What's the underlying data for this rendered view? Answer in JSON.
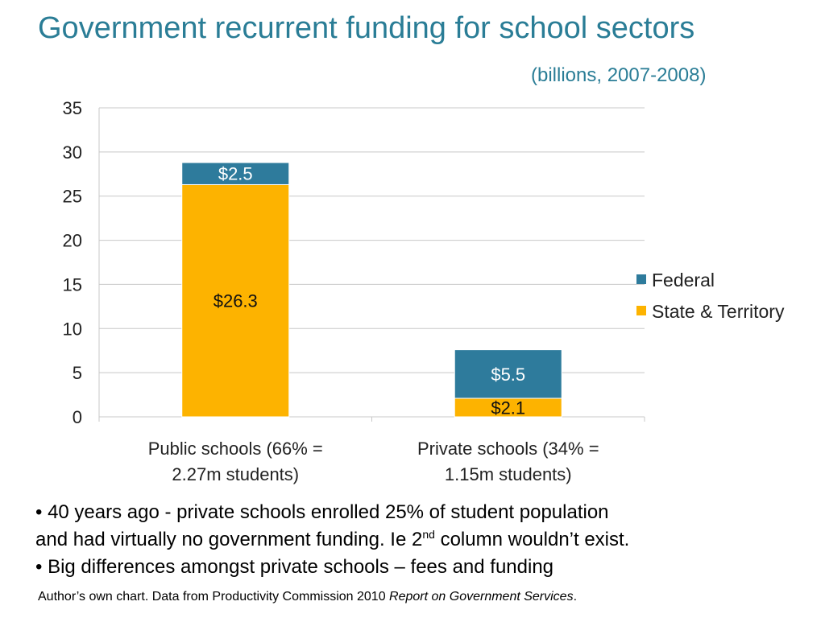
{
  "header": {
    "title": "Government recurrent funding for school sectors",
    "subtitle": "(billions, 2007-2008)"
  },
  "chart_data": {
    "type": "bar",
    "stacked": true,
    "categories": [
      [
        "Public schools (66% =",
        "2.27m students)"
      ],
      [
        "Private schools (34% =",
        "1.15m students)"
      ]
    ],
    "series": [
      {
        "name": "State & Territory",
        "values": [
          26.3,
          2.1
        ],
        "labels": [
          "$26.3",
          "$2.1"
        ],
        "color": "#fdb300"
      },
      {
        "name": "Federal",
        "values": [
          2.5,
          5.5
        ],
        "labels": [
          "$2.5",
          "$5.5"
        ],
        "color": "#2e7b9c"
      }
    ],
    "ylim": [
      0,
      35
    ],
    "yticks": [
      "0",
      "5",
      "10",
      "15",
      "20",
      "25",
      "30",
      "35"
    ],
    "grid": true,
    "legend": "right",
    "legend_order": [
      "Federal",
      "State & Territory"
    ]
  },
  "notes": {
    "bullet1_a": "• 40 years ago - private schools enrolled 25% of student population",
    "bullet1_b": "and had virtually no government funding. Ie 2",
    "bullet1_sup": "nd",
    "bullet1_c": " column wouldn’t exist.",
    "bullet2": "• Big differences amongst private schools – fees and funding"
  },
  "source": {
    "text": "Author’s own chart. Data from Productivity Commission 2010 ",
    "italic": "Report on Government Services",
    "end": "."
  }
}
